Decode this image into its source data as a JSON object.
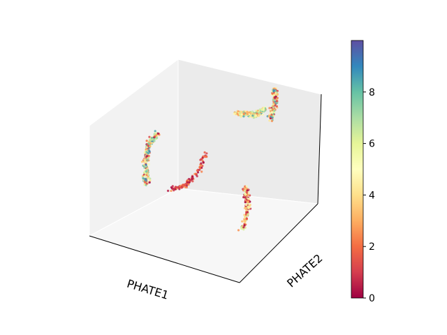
{
  "chart_data": {
    "type": "scatter",
    "projection": "3d",
    "xlabel": "PHATE1",
    "ylabel": "PHATE2",
    "zlabel": "",
    "colormap": "Spectral",
    "colorbar": {
      "min": 0,
      "max": 10,
      "ticks": [
        0,
        2,
        4,
        6,
        8
      ],
      "tick_labels": [
        "0",
        "2",
        "4",
        "6",
        "8"
      ]
    },
    "grid": false,
    "ticks_visible": false,
    "clusters": [
      {
        "name": "left-arc",
        "path": [
          [
            -0.95,
            0.2,
            -0.6
          ],
          [
            -0.9,
            0.1,
            -0.2
          ],
          [
            -0.8,
            0.0,
            0.15
          ],
          [
            -0.65,
            -0.05,
            0.4
          ]
        ],
        "color_range": [
          0,
          9.5
        ],
        "n": 260
      },
      {
        "name": "center-curl",
        "path": [
          [
            -0.55,
            0.05,
            -0.55
          ],
          [
            -0.35,
            0.1,
            -0.45
          ],
          [
            -0.2,
            0.15,
            -0.2
          ],
          [
            -0.15,
            0.25,
            0.05
          ]
        ],
        "color_range": [
          0,
          3
        ],
        "n": 120
      },
      {
        "name": "top-band",
        "path": [
          [
            -0.05,
            0.8,
            0.45
          ],
          [
            0.15,
            0.75,
            0.5
          ],
          [
            0.35,
            0.6,
            0.6
          ],
          [
            0.5,
            0.55,
            0.75
          ]
        ],
        "color_range": [
          2,
          8.5
        ],
        "n": 300
      },
      {
        "name": "right-hook",
        "path": [
          [
            0.55,
            0.6,
            0.55
          ],
          [
            0.6,
            0.65,
            0.85
          ],
          [
            0.55,
            0.7,
            1.0
          ]
        ],
        "color_range": [
          0,
          9
        ],
        "n": 170
      },
      {
        "name": "lower-right-streaks",
        "path": [
          [
            0.55,
            0.0,
            -0.2
          ],
          [
            0.6,
            -0.05,
            -0.5
          ],
          [
            0.55,
            -0.1,
            -0.85
          ]
        ],
        "color_range": [
          0,
          7
        ],
        "n": 160
      }
    ],
    "colors": {
      "pane_left": "#f2f2f2",
      "pane_right": "#ebebeb",
      "pane_floor": "#f7f7f7",
      "axis_line": "#000000"
    }
  }
}
